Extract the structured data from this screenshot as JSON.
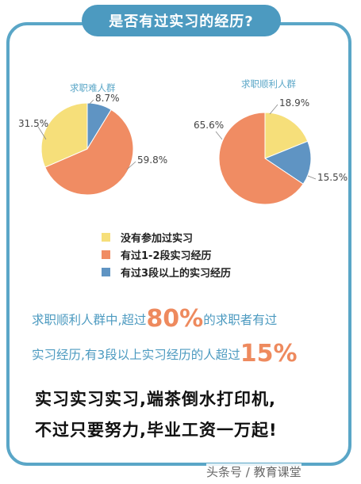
{
  "title": "是否有过实习的经历?",
  "colors": {
    "frame": "#5aa6c7",
    "title_bg": "#4c9ac0",
    "yellow": "#f6df7a",
    "orange": "#f08c63",
    "blue": "#5f94c3",
    "accent_text": "#4c9ac0",
    "highlight": "#ee8a5e"
  },
  "chart_data": [
    {
      "type": "pie",
      "title": "求职难人群",
      "slices": [
        {
          "label": "有过3段以上的实习经历",
          "value": 8.7,
          "display": "8.7%"
        },
        {
          "label": "有过1-2段实习经历",
          "value": 59.8,
          "display": "59.8%"
        },
        {
          "label": "没有参加过实习",
          "value": 31.5,
          "display": "31.5%"
        }
      ]
    },
    {
      "type": "pie",
      "title": "求职顺利人群",
      "slices": [
        {
          "label": "没有参加过实习",
          "value": 18.9,
          "display": "18.9%"
        },
        {
          "label": "有过3段以上的实习经历",
          "value": 15.5,
          "display": "15.5%"
        },
        {
          "label": "有过1-2段实习经历",
          "value": 65.6,
          "display": "65.6%"
        }
      ]
    }
  ],
  "legend": [
    {
      "label": "没有参加过实习",
      "color": "#f6df7a"
    },
    {
      "label": "有过1-2段实习经历",
      "color": "#f08c63"
    },
    {
      "label": "有过3段以上的实习经历",
      "color": "#5f94c3"
    }
  ],
  "note": {
    "line1_a": "求职顺利人群中,超过",
    "line1_big": "80%",
    "line1_b": "的求职者有过",
    "line2_a": "实习经历,有3段以上实习经历的人超过",
    "line2_big": "15%"
  },
  "slogan": {
    "line1": "实习实习实习,端茶倒水打印机,",
    "line2": "不过只要努力,毕业工资一万起!"
  },
  "watermark": "头条号 / 教育课堂"
}
